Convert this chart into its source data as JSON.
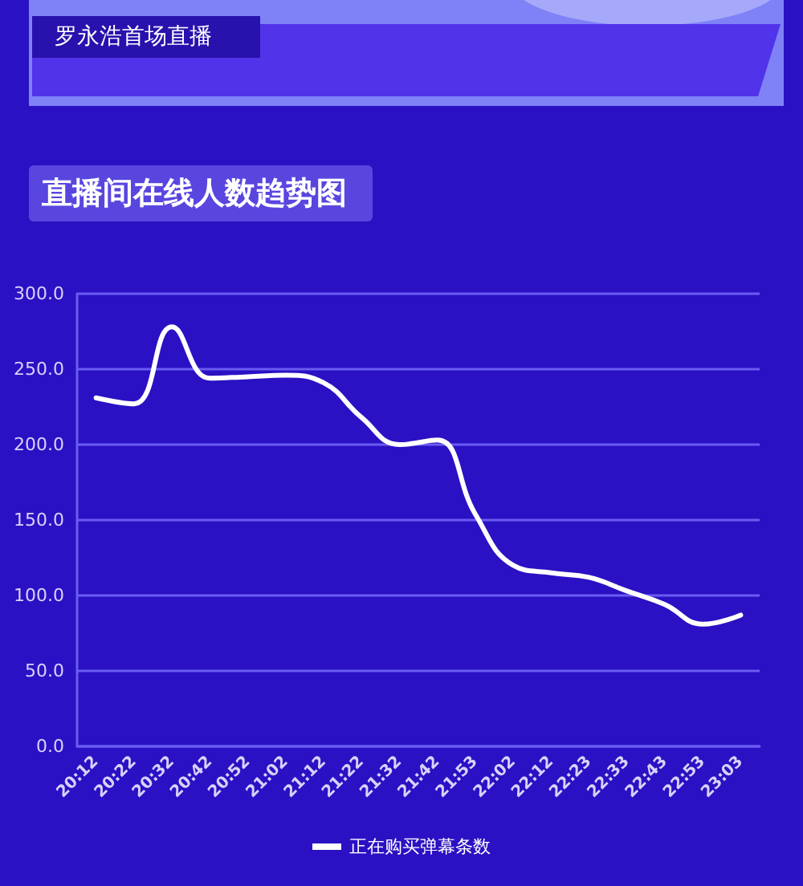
{
  "chart_data": {
    "type": "line",
    "title": "罗永浩首场直播",
    "subtitle": "直播间在线人数趋势图",
    "categories": [
      "20:12",
      "20:22",
      "20:32",
      "20:42",
      "20:52",
      "21:02",
      "21:12",
      "21:22",
      "21:32",
      "21:42",
      "21:53",
      "22:02",
      "22:12",
      "22:23",
      "22:33",
      "22:43",
      "22:53",
      "23:03"
    ],
    "series": [
      {
        "name": "正在购买弹幕条数",
        "color": "#ffffff",
        "values": [
          231,
          227,
          278,
          244,
          245,
          246,
          241,
          218,
          200,
          203,
          154,
          120,
          115,
          112,
          103,
          94,
          81,
          87
        ]
      }
    ],
    "ylim": [
      0,
      300
    ],
    "yticks": [
      {
        "value": 0,
        "label": "0.0"
      },
      {
        "value": 50,
        "label": "50.0"
      },
      {
        "value": 100,
        "label": "100.0"
      },
      {
        "value": 150,
        "label": "150.0"
      },
      {
        "value": 200,
        "label": "200.0"
      },
      {
        "value": 250,
        "label": "250.0"
      },
      {
        "value": 300,
        "label": "300.0"
      }
    ],
    "grid": "y",
    "legend": "bottom",
    "marker": "none"
  }
}
